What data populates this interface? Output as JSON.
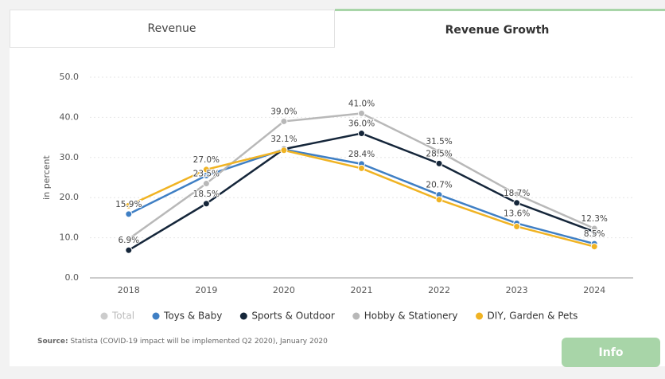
{
  "tabs": [
    "Revenue",
    "Revenue Growth"
  ],
  "source_label": "Source:",
  "source": "Statista (COVID-19 impact will be implemented Q2 2020), January 2020",
  "button": "Info",
  "chart_data": {
    "type": "line",
    "ylabel": "in percent",
    "categories": [
      "2018",
      "2019",
      "2020",
      "2021",
      "2022",
      "2023",
      "2024"
    ],
    "ylim": [
      0,
      50
    ],
    "yticks": [
      {
        "value": 0,
        "label": "0.0"
      },
      {
        "value": 10,
        "label": "10.0"
      },
      {
        "value": 20,
        "label": "20.0"
      },
      {
        "value": 30,
        "label": "30.0"
      },
      {
        "value": 40,
        "label": "40.0"
      },
      {
        "value": 50,
        "label": "50.0"
      }
    ],
    "grid": true,
    "series": [
      {
        "name": "Total",
        "color": "#cccccc",
        "hidden": true,
        "values": [
          null,
          null,
          null,
          null,
          null,
          null,
          null
        ]
      },
      {
        "name": "Toys & Baby",
        "color": "#3f7fc4",
        "values": [
          15.9,
          25.5,
          32.0,
          28.4,
          20.7,
          13.6,
          8.5
        ],
        "value_labels": [
          "15.9%",
          null,
          null,
          "28.4%",
          "20.7%",
          "13.6%",
          "8.5%"
        ]
      },
      {
        "name": "Sports & Outdoor",
        "color": "#15263a",
        "values": [
          6.9,
          18.5,
          32.1,
          36.0,
          28.5,
          18.7,
          11.5
        ],
        "value_labels": [
          "6.9%",
          "18.5%",
          "32.1%",
          "36.0%",
          "28.5%",
          "18.7%",
          null
        ]
      },
      {
        "name": "Hobby & Stationery",
        "color": "#b8b8b8",
        "values": [
          9.7,
          23.5,
          39.0,
          41.0,
          31.5,
          20.8,
          12.3
        ],
        "value_labels": [
          null,
          "23.5%",
          "39.0%",
          "41.0%",
          "31.5%",
          null,
          "12.3%"
        ]
      },
      {
        "name": "DIY, Garden & Pets",
        "color": "#f0b323",
        "values": [
          18.0,
          27.0,
          31.8,
          27.3,
          19.5,
          12.8,
          7.8
        ],
        "value_labels": [
          null,
          "27.0%",
          null,
          null,
          null,
          null,
          null
        ]
      }
    ]
  }
}
